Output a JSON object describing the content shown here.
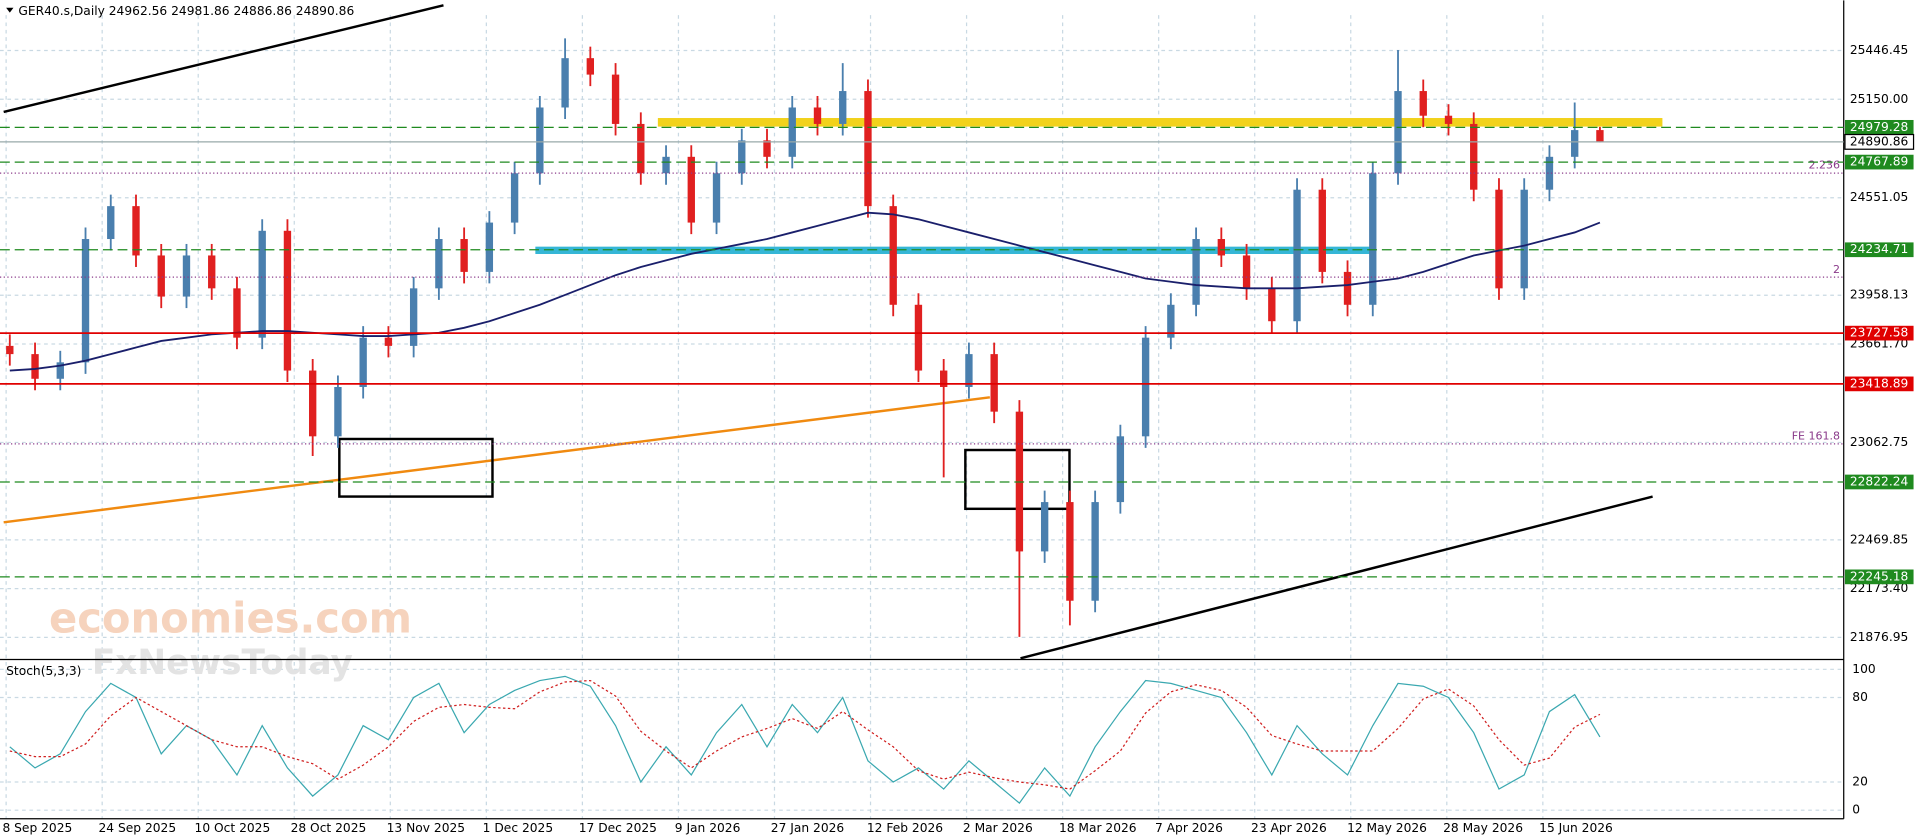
{
  "chart_data": {
    "type": "candlestick",
    "title": "GER40.s,Daily  24962.56 24981.86 24886.86 24890.86",
    "categories": [
      "8 Sep 2025",
      "24 Sep 2025",
      "10 Oct 2025",
      "28 Oct 2025",
      "13 Nov 2025",
      "1 Dec 2025",
      "17 Dec 2025",
      "9 Jan 2026",
      "27 Jan 2026",
      "12 Feb 2026",
      "2 Mar 2026",
      "18 Mar 2026",
      "7 Apr 2026",
      "23 Apr 2026",
      "12 May 2026",
      "28 May 2026",
      "15 Jun 2026"
    ],
    "colors": {
      "up": "#4a7fae",
      "down": "#e02020",
      "ma": "#1a1f6b"
    },
    "candles": [
      [
        23650,
        23720,
        23530,
        23600
      ],
      [
        23600,
        23670,
        23380,
        23450
      ],
      [
        23450,
        23620,
        23380,
        23550
      ],
      [
        23550,
        24370,
        23480,
        24300
      ],
      [
        24300,
        24570,
        24230,
        24500
      ],
      [
        24500,
        24570,
        24130,
        24200
      ],
      [
        24200,
        24270,
        23880,
        23950
      ],
      [
        23950,
        24270,
        23880,
        24200
      ],
      [
        24200,
        24270,
        23930,
        24000
      ],
      [
        24000,
        24070,
        23630,
        23700
      ],
      [
        23700,
        24420,
        23630,
        24350
      ],
      [
        24350,
        24420,
        23430,
        23500
      ],
      [
        23500,
        23570,
        22980,
        23100
      ],
      [
        23100,
        23470,
        23030,
        23400
      ],
      [
        23400,
        23770,
        23330,
        23700
      ],
      [
        23700,
        23770,
        23580,
        23650
      ],
      [
        23650,
        24070,
        23580,
        24000
      ],
      [
        24000,
        24370,
        23930,
        24300
      ],
      [
        24300,
        24370,
        24030,
        24100
      ],
      [
        24100,
        24470,
        24030,
        24400
      ],
      [
        24400,
        24770,
        24330,
        24700
      ],
      [
        24700,
        25170,
        24630,
        25100
      ],
      [
        25100,
        25520,
        25030,
        25400
      ],
      [
        25400,
        25470,
        25230,
        25300
      ],
      [
        25300,
        25370,
        24930,
        25000
      ],
      [
        25000,
        25070,
        24630,
        24700
      ],
      [
        24700,
        24870,
        24630,
        24800
      ],
      [
        24800,
        24870,
        24330,
        24400
      ],
      [
        24400,
        24770,
        24330,
        24700
      ],
      [
        24700,
        24970,
        24630,
        24900
      ],
      [
        24900,
        24970,
        24730,
        24800
      ],
      [
        24800,
        25170,
        24730,
        25100
      ],
      [
        25100,
        25170,
        24930,
        25000
      ],
      [
        25000,
        25370,
        24930,
        25200
      ],
      [
        25200,
        25270,
        24430,
        24500
      ],
      [
        24500,
        24570,
        23830,
        23900
      ],
      [
        23900,
        23970,
        23430,
        23500
      ],
      [
        23500,
        23570,
        22850,
        23400
      ],
      [
        23400,
        23670,
        23330,
        23600
      ],
      [
        23600,
        23670,
        23180,
        23250
      ],
      [
        23250,
        23320,
        21880,
        22400
      ],
      [
        22400,
        22770,
        22330,
        22700
      ],
      [
        22700,
        22770,
        21950,
        22100
      ],
      [
        22100,
        22770,
        22030,
        22700
      ],
      [
        22700,
        23170,
        22630,
        23100
      ],
      [
        23100,
        23770,
        23030,
        23700
      ],
      [
        23700,
        23970,
        23630,
        23900
      ],
      [
        23900,
        24370,
        23830,
        24300
      ],
      [
        24300,
        24370,
        24130,
        24200
      ],
      [
        24200,
        24270,
        23930,
        24000
      ],
      [
        24000,
        24070,
        23730,
        23800
      ],
      [
        23800,
        24670,
        23730,
        24600
      ],
      [
        24600,
        24670,
        24030,
        24100
      ],
      [
        24100,
        24170,
        23830,
        23900
      ],
      [
        23900,
        24770,
        23830,
        24700
      ],
      [
        24700,
        25450,
        24630,
        25200
      ],
      [
        25200,
        25270,
        24980,
        25050
      ],
      [
        25050,
        25120,
        24930,
        25000
      ],
      [
        25000,
        25070,
        24530,
        24600
      ],
      [
        24600,
        24670,
        23930,
        24000
      ],
      [
        24000,
        24670,
        23930,
        24600
      ],
      [
        24600,
        24870,
        24530,
        24800
      ],
      [
        24800,
        25130,
        24730,
        24962.56
      ],
      [
        24962.56,
        24981.86,
        24886.86,
        24890.86
      ]
    ],
    "ma": [
      23500,
      23510,
      23530,
      23560,
      23600,
      23640,
      23680,
      23700,
      23720,
      23730,
      23740,
      23740,
      23730,
      23720,
      23710,
      23710,
      23720,
      23730,
      23760,
      23800,
      23850,
      23900,
      23960,
      24020,
      24080,
      24130,
      24170,
      24210,
      24240,
      24270,
      24300,
      24340,
      24380,
      24420,
      24460,
      24450,
      24420,
      24380,
      24340,
      24300,
      24260,
      24220,
      24180,
      24140,
      24100,
      24060,
      24040,
      24020,
      24010,
      24000,
      24000,
      24000,
      24010,
      24020,
      24040,
      24060,
      24100,
      24150,
      24200,
      24230,
      24260,
      24300,
      24340,
      24400
    ],
    "ylim": [
      21750,
      25714
    ],
    "yticks": [
      25446.45,
      {
        "value": 25150,
        "label": "25150.00"
      },
      24551.05,
      23958.13,
      {
        "value": 23661.7,
        "label": "23661.70"
      },
      23062.75,
      22469.85,
      {
        "value": 22173.4,
        "label": "22173.40"
      },
      21876.95
    ],
    "grid": true,
    "levels": [
      {
        "value": 24979.28,
        "color": "#1f8a1f"
      },
      {
        "value": 24767.89,
        "color": "#1f8a1f"
      },
      {
        "value": 24234.71,
        "color": "#1f8a1f"
      },
      {
        "value": 23727.58,
        "color": "#e00000"
      },
      {
        "value": 23418.89,
        "color": "#e00000"
      },
      {
        "value": 22822.24,
        "color": "#1f8a1f"
      },
      {
        "value": 22245.18,
        "color": "#1f8a1f"
      }
    ],
    "current_price": 24890.86,
    "fibo": [
      {
        "value": 24701,
        "label": "2.236"
      },
      {
        "value": 24068,
        "label": "2"
      },
      {
        "value": 23054,
        "label": "FE 161.8"
      }
    ],
    "watermark": [
      "economies.com",
      "FxNewsToday"
    ],
    "stoch": {
      "name": "Stoch(5,3,3)",
      "ylim": [
        0,
        100
      ],
      "yticks": [
        0,
        20,
        80,
        100
      ],
      "main_color": "#3aa8b0",
      "signal_color": "#d02020",
      "main": [
        45,
        30,
        40,
        70,
        90,
        80,
        40,
        60,
        50,
        25,
        60,
        30,
        10,
        25,
        60,
        50,
        80,
        90,
        55,
        75,
        85,
        92,
        95,
        88,
        60,
        20,
        45,
        25,
        55,
        75,
        45,
        75,
        55,
        80,
        35,
        20,
        30,
        15,
        35,
        20,
        5,
        30,
        10,
        45,
        70,
        92,
        90,
        85,
        80,
        55,
        25,
        60,
        40,
        25,
        60,
        90,
        88,
        80,
        55,
        15,
        25,
        70,
        82,
        52
      ],
      "signal": [
        42,
        38,
        38,
        47,
        67,
        80,
        70,
        60,
        50,
        45,
        45,
        38,
        33,
        22,
        32,
        45,
        63,
        73,
        75,
        73,
        72,
        84,
        91,
        92,
        81,
        56,
        42,
        30,
        42,
        52,
        58,
        65,
        58,
        70,
        57,
        45,
        28,
        22,
        27,
        23,
        20,
        18,
        15,
        28,
        42,
        69,
        84,
        89,
        85,
        73,
        53,
        47,
        42,
        42,
        42,
        58,
        79,
        86,
        74,
        50,
        32,
        37,
        59,
        68
      ]
    }
  }
}
